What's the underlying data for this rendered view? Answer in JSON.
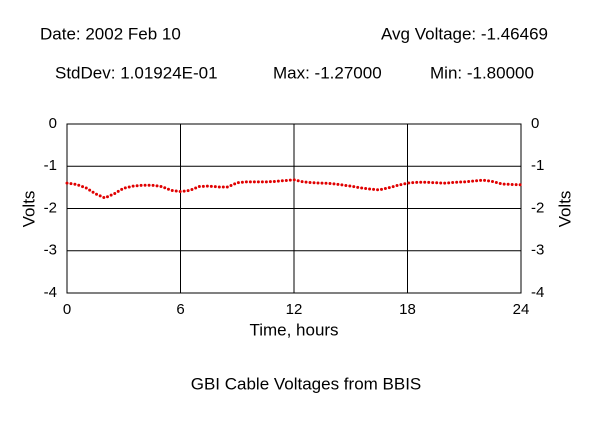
{
  "header": {
    "date": "Date: 2002 Feb 10",
    "avg": "Avg Voltage: -1.46469",
    "stddev": "StdDev: 1.01924E-01",
    "max": "Max: -1.27000",
    "min": "Min: -1.80000"
  },
  "chart_data": {
    "type": "line",
    "title": "GBI Cable Voltages from BBIS",
    "x_label": "Time, hours",
    "y_label": "Volts",
    "x": [
      0,
      0.5,
      1,
      1.5,
      2,
      2.5,
      3,
      3.5,
      4,
      4.5,
      5,
      5.5,
      6,
      6.5,
      7,
      7.5,
      8,
      8.5,
      9,
      9.5,
      10,
      10.5,
      11,
      11.5,
      12,
      12.5,
      13,
      13.5,
      14,
      14.5,
      15,
      15.5,
      16,
      16.5,
      17,
      17.5,
      18,
      18.5,
      19,
      19.5,
      20,
      20.5,
      21,
      21.5,
      22,
      22.5,
      23,
      23.5,
      24
    ],
    "series": [
      {
        "color": "#e00000",
        "values": [
          -1.4,
          -1.43,
          -1.51,
          -1.65,
          -1.75,
          -1.65,
          -1.52,
          -1.47,
          -1.45,
          -1.45,
          -1.48,
          -1.57,
          -1.6,
          -1.57,
          -1.48,
          -1.47,
          -1.49,
          -1.49,
          -1.39,
          -1.37,
          -1.37,
          -1.37,
          -1.36,
          -1.34,
          -1.32,
          -1.37,
          -1.39,
          -1.4,
          -1.41,
          -1.44,
          -1.47,
          -1.51,
          -1.54,
          -1.56,
          -1.51,
          -1.45,
          -1.4,
          -1.38,
          -1.38,
          -1.39,
          -1.4,
          -1.38,
          -1.37,
          -1.35,
          -1.33,
          -1.36,
          -1.42,
          -1.43,
          -1.44
        ]
      }
    ],
    "xlim": [
      0,
      24
    ],
    "xticks": [
      0,
      6,
      12,
      18,
      24
    ],
    "ylim": [
      -4,
      0
    ],
    "yticks": [
      0,
      -1,
      -2,
      -3,
      -4
    ],
    "grid": true
  }
}
